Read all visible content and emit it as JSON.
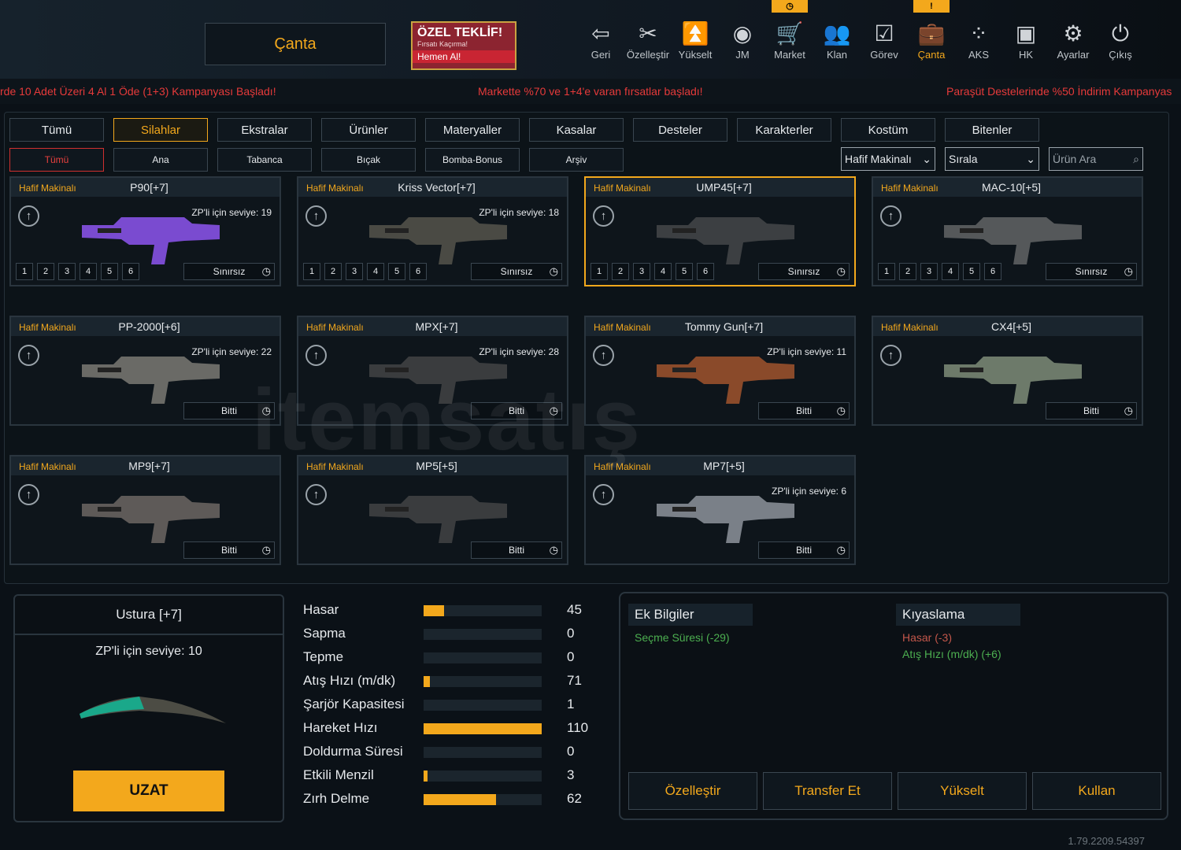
{
  "header": {
    "title": "Çanta",
    "offer": {
      "title": "ÖZEL TEKLİF!",
      "subtitle": "Fırsatı Kaçırma!",
      "cta": "Hemen Al!"
    }
  },
  "nav": [
    {
      "label": "Geri",
      "icon": "back-icon",
      "glyph": "⇦"
    },
    {
      "label": "Özelleştir",
      "icon": "tools-icon",
      "glyph": "✂"
    },
    {
      "label": "Yükselt",
      "icon": "upgrade-icon",
      "glyph": "⏫"
    },
    {
      "label": "JM",
      "icon": "coins-icon",
      "glyph": "◉"
    },
    {
      "label": "Market",
      "icon": "cart-icon",
      "glyph": "🛒",
      "badge": "◷"
    },
    {
      "label": "Klan",
      "icon": "clan-icon",
      "glyph": "👥"
    },
    {
      "label": "Görev",
      "icon": "clipboard-icon",
      "glyph": "☑"
    },
    {
      "label": "Çanta",
      "icon": "bag-icon",
      "glyph": "💼",
      "badge": "!",
      "active": true
    },
    {
      "label": "AKS",
      "icon": "dots-icon",
      "glyph": "⁘"
    },
    {
      "label": "HK",
      "icon": "wallet-icon",
      "glyph": "▣"
    },
    {
      "label": "Ayarlar",
      "icon": "gear-icon",
      "glyph": "⚙"
    },
    {
      "label": "Çıkış",
      "icon": "power-icon",
      "glyph": "⏻"
    }
  ],
  "ticker": [
    "rde 10 Adet Üzeri 4 Al 1 Öde (1+3) Kampanyası Başladı!",
    "Markette %70 ve 1+4'e varan fırsatlar başladı!",
    "Paraşüt Destelerinde %50 İndirim Kampanyas"
  ],
  "tabs": [
    "Tümü",
    "Silahlar",
    "Ekstralar",
    "Ürünler",
    "Materyaller",
    "Kasalar",
    "Desteler",
    "Karakterler",
    "Kostüm",
    "Bitenler"
  ],
  "active_tab": "Silahlar",
  "subtabs": [
    "Tümü",
    "Ana",
    "Tabanca",
    "Bıçak",
    "Bomba-Bonus",
    "Arşiv"
  ],
  "filters": {
    "category": "Hafif Makinalı",
    "sort": "Sırala",
    "search_placeholder": "Ürün Ara"
  },
  "items": [
    {
      "cat": "Hafif Makinalı",
      "name": "P90[+7]",
      "level": "ZP'li için seviye: 19",
      "slots": [
        "1",
        "2",
        "3",
        "4",
        "5",
        "6"
      ],
      "duration": "Sınırsız",
      "color": "#7a4bd0"
    },
    {
      "cat": "Hafif Makinalı",
      "name": "Kriss Vector[+7]",
      "level": "ZP'li için seviye: 18",
      "slots": [
        "1",
        "2",
        "3",
        "4",
        "5",
        "6"
      ],
      "duration": "Sınırsız",
      "color": "#4a4a44"
    },
    {
      "cat": "Hafif Makinalı",
      "name": "UMP45[+7]",
      "level": "",
      "slots": [
        "1",
        "2",
        "3",
        "4",
        "5",
        "6"
      ],
      "duration": "Sınırsız",
      "selected": true,
      "color": "#3c3f42"
    },
    {
      "cat": "Hafif Makinalı",
      "name": "MAC-10[+5]",
      "level": "",
      "slots": [
        "1",
        "2",
        "3",
        "4",
        "5",
        "6"
      ],
      "duration": "Sınırsız",
      "color": "#55585a"
    },
    {
      "cat": "Hafif Makinalı",
      "name": "PP-2000[+6]",
      "level": "ZP'li için seviye: 22",
      "duration": "Bitti",
      "color": "#6a6a66"
    },
    {
      "cat": "Hafif Makinalı",
      "name": "MPX[+7]",
      "level": "ZP'li için seviye: 28",
      "duration": "Bitti",
      "color": "#3a3c3e"
    },
    {
      "cat": "Hafif Makinalı",
      "name": "Tommy Gun[+7]",
      "level": "ZP'li için seviye: 11",
      "duration": "Bitti",
      "color": "#8a4a2a"
    },
    {
      "cat": "Hafif Makinalı",
      "name": "CX4[+5]",
      "level": "",
      "duration": "Bitti",
      "color": "#6d7a6a"
    },
    {
      "cat": "Hafif Makinalı",
      "name": "MP9[+7]",
      "level": "",
      "duration": "Bitti",
      "color": "#5e5a58"
    },
    {
      "cat": "Hafif Makinalı",
      "name": "MP5[+5]",
      "level": "",
      "duration": "Bitti",
      "color": "#3a3c3e"
    },
    {
      "cat": "Hafif Makinalı",
      "name": "MP7[+5]",
      "level": "ZP'li için seviye: 6",
      "duration": "Bitti",
      "color": "#7a8088"
    }
  ],
  "detail": {
    "name": "Ustura [+7]",
    "level": "ZP'li için seviye: 10",
    "button": "UZAT",
    "stats": [
      {
        "label": "Hasar",
        "value": "45",
        "fill": 0.17
      },
      {
        "label": "Sapma",
        "value": "0",
        "fill": 0
      },
      {
        "label": "Tepme",
        "value": "0",
        "fill": 0
      },
      {
        "label": "Atış Hızı (m/dk)",
        "value": "71",
        "fill": 0.05
      },
      {
        "label": "Şarjör Kapasitesi",
        "value": "1",
        "fill": 0
      },
      {
        "label": "Hareket Hızı",
        "value": "110",
        "fill": 1
      },
      {
        "label": "Doldurma Süresi",
        "value": "0",
        "fill": 0
      },
      {
        "label": "Etkili Menzil",
        "value": "3",
        "fill": 0.03
      },
      {
        "label": "Zırh Delme",
        "value": "62",
        "fill": 0.61
      }
    ]
  },
  "extra": {
    "title": "Ek Bilgiler",
    "lines": [
      "Seçme Süresi (-29)"
    ]
  },
  "compare": {
    "title": "Kıyaslama",
    "neg": "Hasar (-3)",
    "pos": "Atış Hızı (m/dk) (+6)"
  },
  "actions": [
    "Özelleştir",
    "Transfer Et",
    "Yükselt",
    "Kullan"
  ],
  "version": "1.79.2209.54397",
  "watermark": "itemsatis.com",
  "colors": {
    "accent": "#f3a81c",
    "negative": "#c4574b",
    "positive": "#4caf50"
  }
}
